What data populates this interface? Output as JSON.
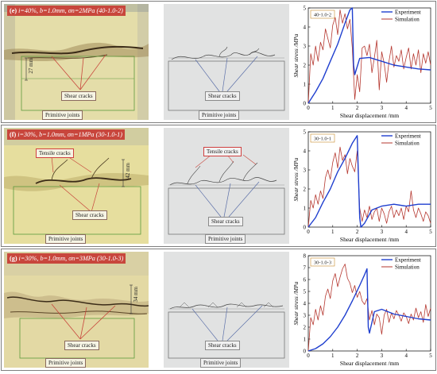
{
  "panels": [
    {
      "label": "(e)",
      "condition": "i=40%, b=1.0mm, σn=2MPa (40-1.0-2)",
      "photo_labels": {
        "spacing": "27 mm",
        "shear": "Shear cracks",
        "joints": "Primitive joints"
      },
      "sim_labels": {
        "shear": "Shear cracks",
        "joints": "Primitive joints"
      }
    },
    {
      "label": "(f)",
      "condition": "i=30%, b=1.0mm, σn=1MPa (30-1.0-1)",
      "photo_labels": {
        "tensile": "Tensile cracks",
        "spacing": "42 mm",
        "shear": "Shear cracks",
        "joints": "Primitive joints"
      },
      "sim_labels": {
        "tensile": "Tensile cracks",
        "shear": "Shear cracks",
        "joints": "Primitive joints"
      }
    },
    {
      "label": "(g)",
      "condition": "i=30%, b=1.0mm, σn=3MPa (30-1.0-3)",
      "photo_labels": {
        "spacing": "34 mm",
        "shear": "Shear cracks",
        "joints": "Primitive joints"
      },
      "sim_labels": {
        "shear": "Shear cracks",
        "joints": "Primitive joints"
      }
    }
  ],
  "chart_data": [
    {
      "type": "line",
      "tag": "40-1.0-2",
      "xlabel": "Shear displacement /mm",
      "ylabel": "Shear stress /MPa",
      "xlim": [
        0,
        5
      ],
      "ylim": [
        0,
        5
      ],
      "xticks": [
        0,
        1,
        2,
        3,
        4,
        5
      ],
      "yticks": [
        0,
        1,
        2,
        3,
        4,
        5
      ],
      "legend": "top-right",
      "series": [
        {
          "name": "Experiment",
          "color": "#1f3fcf",
          "x": [
            0.0,
            0.3,
            0.6,
            0.9,
            1.2,
            1.5,
            1.7,
            1.8,
            1.85,
            1.9,
            2.1,
            2.5,
            3.0,
            3.5,
            4.0,
            4.5,
            5.0
          ],
          "y": [
            0.0,
            0.6,
            1.3,
            2.2,
            3.1,
            4.2,
            4.9,
            5.0,
            2.0,
            1.5,
            2.35,
            2.4,
            2.2,
            2.0,
            1.9,
            1.8,
            1.75
          ]
        },
        {
          "name": "Simulation",
          "color": "#b5372f",
          "x": [
            0.0,
            0.1,
            0.2,
            0.3,
            0.4,
            0.5,
            0.6,
            0.7,
            0.8,
            0.9,
            1.0,
            1.1,
            1.2,
            1.3,
            1.4,
            1.5,
            1.6,
            1.7,
            1.8,
            1.9,
            2.0,
            2.1,
            2.2,
            2.3,
            2.4,
            2.5,
            2.6,
            2.7,
            2.8,
            2.9,
            3.0,
            3.1,
            3.2,
            3.3,
            3.4,
            3.5,
            3.6,
            3.7,
            3.8,
            3.9,
            4.0,
            4.1,
            4.2,
            4.3,
            4.4,
            4.5,
            4.6,
            4.7,
            4.8,
            4.9,
            5.0
          ],
          "y": [
            0.0,
            2.6,
            2.0,
            3.0,
            2.2,
            3.2,
            2.8,
            3.9,
            3.4,
            2.9,
            4.1,
            4.5,
            3.6,
            4.9,
            4.2,
            4.7,
            3.9,
            4.4,
            2.9,
            0.2,
            1.5,
            0.6,
            2.9,
            3.0,
            2.5,
            3.1,
            1.6,
            2.4,
            3.3,
            0.7,
            2.7,
            2.1,
            1.1,
            2.2,
            3.0,
            1.9,
            2.5,
            2.2,
            2.8,
            1.8,
            2.4,
            2.9,
            1.8,
            2.6,
            2.0,
            2.8,
            1.6,
            2.6,
            2.1,
            2.7,
            2.0
          ]
        }
      ]
    },
    {
      "type": "line",
      "tag": "30-1.0-1",
      "xlabel": "Shear displacement /mm",
      "ylabel": "Shear stress /MPa",
      "xlim": [
        0,
        5
      ],
      "ylim": [
        0,
        5
      ],
      "xticks": [
        0,
        1,
        2,
        3,
        4,
        5
      ],
      "yticks": [
        0,
        1,
        2,
        3,
        4,
        5
      ],
      "legend": "top-right",
      "series": [
        {
          "name": "Experiment",
          "color": "#1f3fcf",
          "x": [
            0.0,
            0.3,
            0.6,
            0.9,
            1.2,
            1.5,
            1.8,
            2.0,
            2.1,
            2.15,
            2.3,
            2.6,
            3.0,
            3.5,
            4.0,
            4.5,
            5.0
          ],
          "y": [
            0.0,
            0.5,
            1.3,
            2.0,
            2.9,
            3.6,
            4.4,
            4.8,
            0.5,
            0.0,
            0.2,
            0.9,
            1.1,
            1.2,
            1.1,
            1.2,
            1.2
          ]
        },
        {
          "name": "Simulation",
          "color": "#b5372f",
          "x": [
            0.0,
            0.1,
            0.2,
            0.3,
            0.4,
            0.5,
            0.6,
            0.7,
            0.8,
            0.9,
            1.0,
            1.1,
            1.2,
            1.3,
            1.4,
            1.5,
            1.6,
            1.7,
            1.8,
            1.9,
            2.0,
            2.1,
            2.2,
            2.3,
            2.4,
            2.5,
            2.6,
            2.7,
            2.8,
            2.9,
            3.0,
            3.1,
            3.2,
            3.3,
            3.4,
            3.5,
            3.6,
            3.7,
            3.8,
            3.9,
            4.0,
            4.1,
            4.2,
            4.3,
            4.4,
            4.5,
            4.6,
            4.7,
            4.8,
            4.9,
            5.0
          ],
          "y": [
            0.0,
            1.4,
            1.0,
            1.7,
            1.2,
            1.9,
            1.5,
            2.6,
            3.0,
            2.5,
            3.4,
            3.9,
            3.1,
            4.2,
            3.5,
            3.8,
            2.8,
            3.6,
            3.2,
            2.9,
            4.0,
            1.0,
            0.3,
            0.9,
            0.5,
            1.1,
            0.4,
            0.8,
            1.0,
            0.3,
            1.0,
            0.7,
            0.2,
            0.8,
            1.1,
            0.5,
            0.9,
            0.6,
            1.0,
            0.4,
            1.1,
            0.8,
            1.9,
            0.9,
            0.5,
            1.0,
            0.7,
            0.3,
            0.8,
            0.6,
            0.2
          ]
        }
      ]
    },
    {
      "type": "line",
      "tag": "30-1.0-3",
      "xlabel": "Shear displacement /mm",
      "ylabel": "Shear stress /MPa",
      "xlim": [
        0,
        5
      ],
      "ylim": [
        0,
        8
      ],
      "xticks": [
        0,
        1,
        2,
        3,
        4,
        5
      ],
      "yticks": [
        0,
        1,
        2,
        3,
        4,
        5,
        6,
        7,
        8
      ],
      "legend": "top-right",
      "series": [
        {
          "name": "Experiment",
          "color": "#1f3fcf",
          "x": [
            0.0,
            0.3,
            0.6,
            0.9,
            1.2,
            1.5,
            1.8,
            2.1,
            2.3,
            2.4,
            2.45,
            2.5,
            2.7,
            3.0,
            3.5,
            4.0,
            4.5,
            5.0
          ],
          "y": [
            0.0,
            0.2,
            0.6,
            1.2,
            2.0,
            3.0,
            4.2,
            5.5,
            6.4,
            6.9,
            2.0,
            1.5,
            3.3,
            3.5,
            3.1,
            2.9,
            2.7,
            2.6
          ]
        },
        {
          "name": "Simulation",
          "color": "#b5372f",
          "x": [
            0.0,
            0.1,
            0.2,
            0.3,
            0.4,
            0.5,
            0.6,
            0.7,
            0.8,
            0.9,
            1.0,
            1.1,
            1.2,
            1.3,
            1.4,
            1.5,
            1.6,
            1.7,
            1.8,
            1.9,
            2.0,
            2.1,
            2.2,
            2.3,
            2.4,
            2.5,
            2.6,
            2.7,
            2.8,
            2.9,
            3.0,
            3.1,
            3.2,
            3.3,
            3.4,
            3.5,
            3.6,
            3.7,
            3.8,
            3.9,
            4.0,
            4.1,
            4.2,
            4.3,
            4.4,
            4.5,
            4.6,
            4.7,
            4.8,
            4.9,
            5.0
          ],
          "y": [
            0.0,
            2.8,
            2.2,
            3.5,
            2.6,
            3.8,
            3.0,
            4.6,
            5.2,
            4.4,
            5.9,
            6.5,
            5.4,
            6.2,
            6.9,
            7.3,
            6.1,
            5.7,
            4.9,
            5.5,
            4.5,
            5.0,
            4.2,
            3.9,
            4.4,
            2.6,
            3.4,
            2.2,
            3.1,
            2.8,
            1.4,
            3.0,
            3.5,
            2.4,
            3.2,
            2.7,
            3.4,
            3.0,
            2.5,
            3.2,
            2.9,
            2.3,
            3.1,
            2.6,
            3.6,
            2.8,
            3.3,
            2.4,
            3.9,
            2.9,
            3.6
          ]
        }
      ]
    }
  ]
}
